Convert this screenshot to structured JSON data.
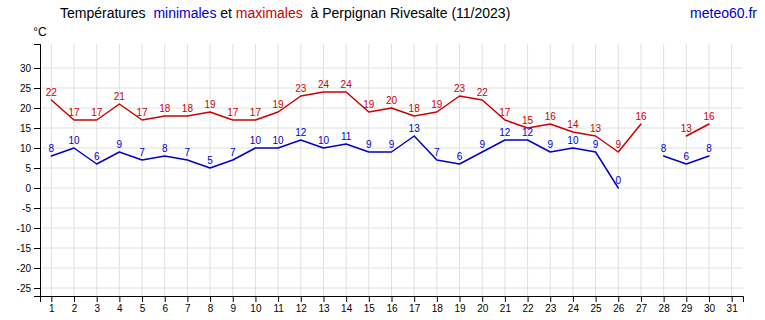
{
  "chart_data": {
    "type": "line",
    "title": "Températures  minimales et maximales  à Perpignan Rivesalte (11/2023)",
    "ylabel": "°C",
    "annotations": [
      {
        "text": "meteo60.fr",
        "color": "#0000cc"
      }
    ],
    "x": [
      1,
      2,
      3,
      4,
      5,
      6,
      7,
      8,
      9,
      10,
      11,
      12,
      13,
      14,
      15,
      16,
      17,
      18,
      19,
      20,
      21,
      22,
      23,
      24,
      25,
      26,
      27,
      28,
      29,
      30,
      31
    ],
    "series": [
      {
        "name": "minimales",
        "color": "#0000cc",
        "values": [
          8,
          10,
          6,
          9,
          7,
          8,
          7,
          5,
          7,
          10,
          10,
          12,
          10,
          11,
          9,
          9,
          13,
          7,
          6,
          9,
          12,
          12,
          9,
          10,
          9,
          0,
          null,
          8,
          6,
          8,
          null
        ]
      },
      {
        "name": "maximales",
        "color": "#cc0000",
        "values": [
          22,
          17,
          17,
          21,
          17,
          18,
          18,
          19,
          17,
          17,
          19,
          23,
          24,
          24,
          19,
          20,
          18,
          19,
          23,
          22,
          17,
          15,
          16,
          14,
          13,
          9,
          16,
          null,
          13,
          16,
          null
        ]
      }
    ],
    "xlim": [
      0.5,
      31.5
    ],
    "xticks": [
      1,
      2,
      3,
      4,
      5,
      6,
      7,
      8,
      9,
      10,
      11,
      12,
      13,
      14,
      15,
      16,
      17,
      18,
      19,
      20,
      21,
      22,
      23,
      24,
      25,
      26,
      27,
      28,
      29,
      30,
      31
    ],
    "ylim": [
      -27,
      36
    ],
    "yticks": [
      -25,
      -20,
      -15,
      -10,
      -5,
      0,
      5,
      10,
      15,
      20,
      25,
      30
    ],
    "grid": true,
    "data_labels": true
  }
}
